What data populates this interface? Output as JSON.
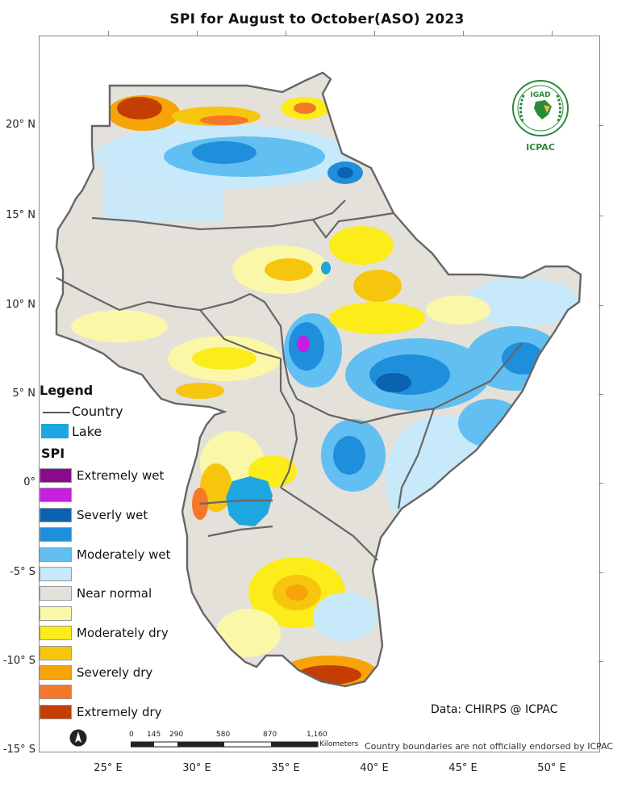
{
  "title": "SPI   for  August to October(ASO) 2023",
  "latitude_labels": [
    {
      "label": "20° N"
    },
    {
      "label": "15° N"
    },
    {
      "label": "10° N"
    },
    {
      "label": "5° N"
    },
    {
      "label": "0°"
    },
    {
      "label": "-5° S"
    },
    {
      "label": "-10° S"
    },
    {
      "label": "-15° S"
    }
  ],
  "longitude_labels": [
    {
      "label": "25° E"
    },
    {
      "label": "30° E"
    },
    {
      "label": "35° E"
    },
    {
      "label": "40° E"
    },
    {
      "label": "45° E"
    },
    {
      "label": "50° E"
    }
  ],
  "legend": {
    "title": "Legend",
    "country_label": "Country",
    "lake_label": "Lake",
    "spi_title": "SPI",
    "classes": [
      {
        "label": "Extremely wet",
        "color": "#8b0a8b"
      },
      {
        "label": "",
        "color": "#c81ee0"
      },
      {
        "label": "Severly wet",
        "color": "#0a63b0"
      },
      {
        "label": "",
        "color": "#1f8fdc"
      },
      {
        "label": "Moderately wet",
        "color": "#62bff2"
      },
      {
        "label": "",
        "color": "#c7e9fa"
      },
      {
        "label": "Near normal",
        "color": "#e4e1da"
      },
      {
        "label": "",
        "color": "#fbf7a8"
      },
      {
        "label": "Moderately dry",
        "color": "#fbec1a"
      },
      {
        "label": "",
        "color": "#f6c60e"
      },
      {
        "label": "Severely dry",
        "color": "#f6a40a"
      },
      {
        "label": "",
        "color": "#f6762a"
      },
      {
        "label": "Extremely dry",
        "color": "#c43e04"
      }
    ]
  },
  "credit": "Data: CHIRPS @ ICPAC",
  "disclaimer": "Country boundaries are not officially endorsed by ICPAC",
  "scale": {
    "ticks": [
      "0",
      "145",
      "290",
      "580",
      "870",
      "1,160"
    ],
    "units": "Kilometers"
  },
  "logo": {
    "top_text": "IGAD",
    "bottom_text": "ICPAC"
  }
}
